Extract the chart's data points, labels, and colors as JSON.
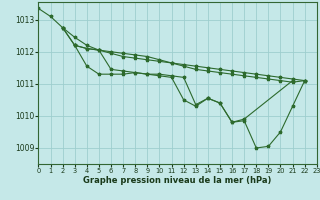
{
  "background_color": "#c5e8e8",
  "grid_color": "#9ecece",
  "line_color": "#2d6a2d",
  "xlabel": "Graphe pression niveau de la mer (hPa)",
  "xlim": [
    0,
    23
  ],
  "ylim": [
    1008.5,
    1013.55
  ],
  "yticks": [
    1009,
    1010,
    1011,
    1012,
    1013
  ],
  "xticks": [
    0,
    1,
    2,
    3,
    4,
    5,
    6,
    7,
    8,
    9,
    10,
    11,
    12,
    13,
    14,
    15,
    16,
    17,
    18,
    19,
    20,
    21,
    22,
    23
  ],
  "lines": [
    {
      "x": [
        0,
        1,
        2,
        3,
        4,
        5,
        6,
        7,
        8,
        9,
        10,
        11,
        12,
        13,
        14,
        15,
        16,
        17,
        18,
        19,
        20,
        21,
        22
      ],
      "y": [
        1013.35,
        1013.1,
        1012.75,
        1012.45,
        1012.2,
        1012.05,
        1011.95,
        1011.85,
        1011.8,
        1011.75,
        1011.7,
        1011.65,
        1011.6,
        1011.55,
        1011.5,
        1011.45,
        1011.4,
        1011.35,
        1011.3,
        1011.25,
        1011.2,
        1011.15,
        1011.1
      ]
    },
    {
      "x": [
        2,
        3,
        4,
        5,
        6,
        7,
        8,
        9,
        10,
        11,
        12,
        13,
        14,
        15,
        16,
        17,
        21
      ],
      "y": [
        1012.75,
        1012.2,
        1011.55,
        1011.3,
        1011.3,
        1011.3,
        1011.35,
        1011.3,
        1011.3,
        1011.25,
        1011.2,
        1010.35,
        1010.55,
        1010.4,
        1009.8,
        1009.9,
        1011.1
      ]
    },
    {
      "x": [
        2,
        3,
        4,
        5,
        6,
        7,
        8,
        9,
        10,
        11,
        12,
        13,
        14,
        15,
        16,
        17,
        18,
        19,
        20,
        21,
        22
      ],
      "y": [
        1012.75,
        1012.2,
        1012.1,
        1012.05,
        1012.0,
        1011.95,
        1011.9,
        1011.85,
        1011.75,
        1011.65,
        1011.55,
        1011.45,
        1011.4,
        1011.35,
        1011.3,
        1011.25,
        1011.2,
        1011.15,
        1011.1,
        1011.05,
        1011.1
      ]
    },
    {
      "x": [
        3,
        4,
        5,
        6,
        7,
        8,
        9,
        10,
        11,
        12,
        13,
        14,
        15,
        16,
        17,
        18,
        19,
        20,
        21,
        22
      ],
      "y": [
        1012.2,
        1012.1,
        1012.05,
        1011.45,
        1011.4,
        1011.35,
        1011.3,
        1011.25,
        1011.2,
        1010.5,
        1010.3,
        1010.55,
        1010.4,
        1009.8,
        1009.85,
        1009.0,
        1009.05,
        1009.5,
        1010.3,
        1011.1
      ]
    }
  ]
}
